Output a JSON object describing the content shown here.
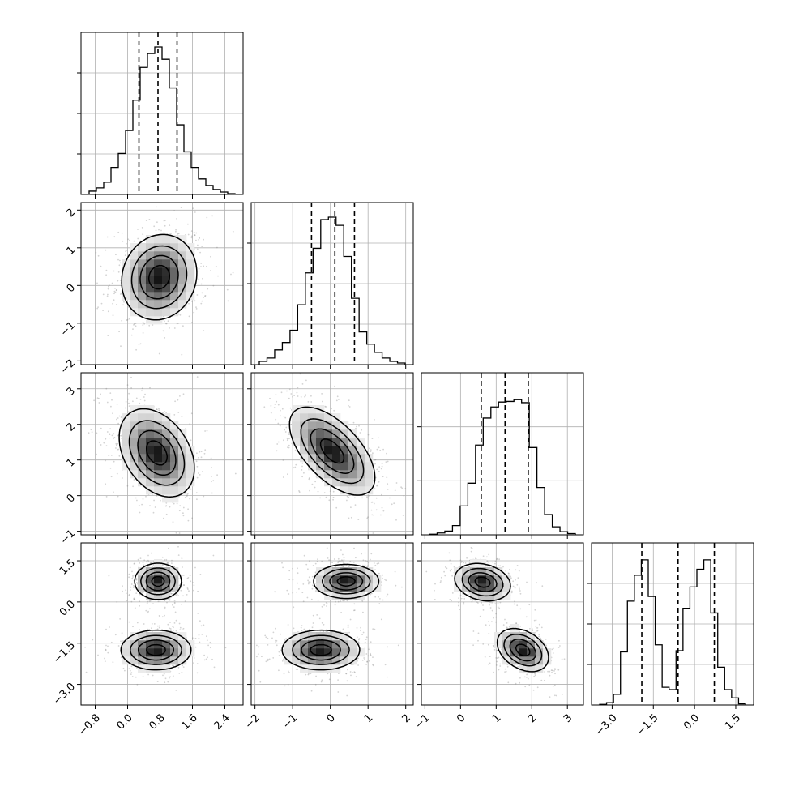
{
  "chart_data": {
    "type": "corner",
    "grid": true,
    "quantile_line_style": "dashed",
    "parameters": [
      {
        "range": [
          -1.15,
          2.85
        ],
        "ticks": [
          -0.8,
          0.0,
          0.8,
          1.6,
          2.4
        ],
        "tick_labels": [
          "−0.8",
          "0.0",
          "0.8",
          "1.6",
          "2.4"
        ],
        "quantiles": [
          0.28,
          0.75,
          1.22
        ],
        "hist_max": 1800,
        "hist_counts": [
          40,
          80,
          150,
          330,
          500,
          780,
          1150,
          1550,
          1720,
          1800,
          1650,
          1300,
          850,
          520,
          330,
          190,
          110,
          60,
          30,
          10
        ]
      },
      {
        "range": [
          -2.1,
          2.2
        ],
        "ticks": [
          -2,
          -1,
          0,
          1,
          2
        ],
        "tick_labels": [
          "−2",
          "−1",
          "0",
          "1",
          "2"
        ],
        "quantiles": [
          -0.5,
          0.12,
          0.64
        ],
        "hist_max": 1800,
        "hist_counts": [
          40,
          80,
          180,
          270,
          420,
          730,
          1120,
          1420,
          1770,
          1800,
          1700,
          1320,
          810,
          400,
          250,
          150,
          80,
          40,
          20
        ]
      },
      {
        "range": [
          -1.1,
          3.45
        ],
        "ticks": [
          -1,
          0,
          1,
          2,
          3
        ],
        "tick_labels": [
          "−1",
          "0",
          "1",
          "2",
          "3"
        ],
        "quantiles": [
          0.58,
          1.25,
          1.9
        ],
        "hist_max": 2400,
        "hist_counts": [
          10,
          30,
          60,
          150,
          470,
          840,
          1460,
          1900,
          2080,
          2160,
          2170,
          2200,
          2150,
          1420,
          770,
          330,
          130,
          50,
          20
        ]
      },
      {
        "range": [
          -3.75,
          2.15
        ],
        "ticks": [
          -3.0,
          -1.5,
          0.0,
          1.5
        ],
        "tick_labels": [
          "−3.0",
          "−1.5",
          "0.0",
          "1.5"
        ],
        "quantiles": [
          -1.92,
          -0.6,
          0.72
        ],
        "hist_max": 1250,
        "hist_counts": [
          5,
          20,
          90,
          450,
          880,
          1100,
          1230,
          920,
          510,
          150,
          130,
          460,
          820,
          1000,
          1150,
          1230,
          780,
          320,
          130,
          60,
          10
        ]
      }
    ],
    "clusters_2d": [
      {
        "pair": [
          0,
          1
        ],
        "peaks": [
          {
            "mx": 0.78,
            "my": 0.22,
            "sx": 0.45,
            "sy": 0.55,
            "rho": 0.1
          }
        ]
      },
      {
        "pair": [
          0,
          2
        ],
        "peaks": [
          {
            "mx": 0.72,
            "my": 1.2,
            "sx": 0.45,
            "sy": 0.6,
            "rho": -0.35
          }
        ]
      },
      {
        "pair": [
          1,
          2
        ],
        "peaks": [
          {
            "mx": 0.05,
            "my": 1.25,
            "sx": 0.55,
            "sy": 0.6,
            "rho": -0.6
          }
        ]
      },
      {
        "pair": [
          0,
          3
        ],
        "peaks": [
          {
            "mx": 0.75,
            "my": 0.75,
            "sx": 0.28,
            "sy": 0.32,
            "rho": 0
          },
          {
            "mx": 0.7,
            "my": -1.75,
            "sx": 0.42,
            "sy": 0.35,
            "rho": 0
          }
        ]
      },
      {
        "pair": [
          1,
          3
        ],
        "peaks": [
          {
            "mx": 0.42,
            "my": 0.75,
            "sx": 0.42,
            "sy": 0.3,
            "rho": 0
          },
          {
            "mx": -0.25,
            "my": -1.75,
            "sx": 0.5,
            "sy": 0.35,
            "rho": 0
          }
        ]
      },
      {
        "pair": [
          2,
          3
        ],
        "peaks": [
          {
            "mx": 0.62,
            "my": 0.72,
            "sx": 0.38,
            "sy": 0.33,
            "rho": -0.2
          },
          {
            "mx": 1.75,
            "my": -1.75,
            "sx": 0.35,
            "sy": 0.38,
            "rho": -0.35
          }
        ]
      }
    ]
  }
}
